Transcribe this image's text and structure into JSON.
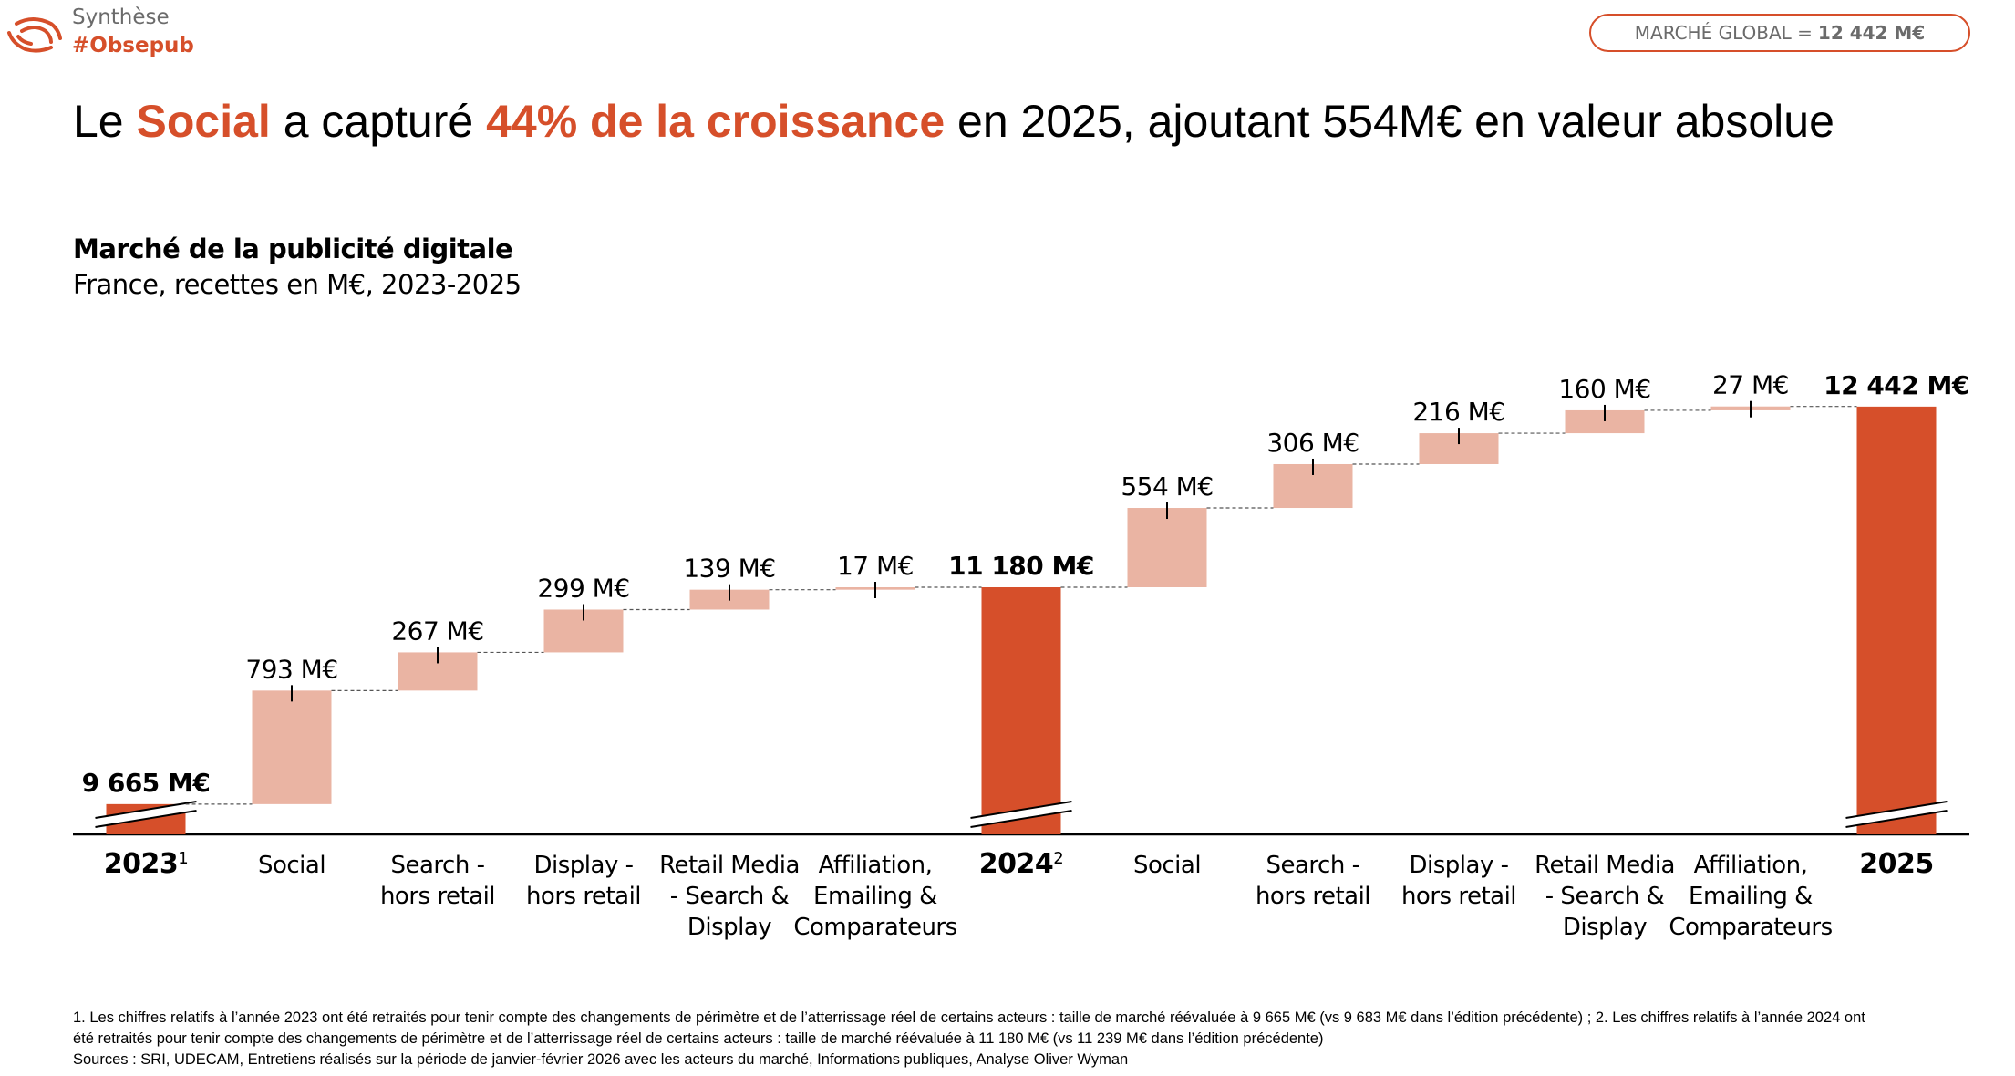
{
  "header": {
    "brand_line1": "Synthèse",
    "brand_line2": "#Obsepub",
    "market_badge_label": "MARCHÉ GLOBAL =",
    "market_badge_value": "12 442 M€"
  },
  "headline": {
    "p1": "Le ",
    "h1": "Social",
    "p2": " a capturé ",
    "h2": "44% de la croissance",
    "p3": " en 2025, ajoutant 554M€ en valeur absolue"
  },
  "colors": {
    "accent": "#D64F2A",
    "increment": "#EAB4A3"
  },
  "chart_data": {
    "type": "waterfall",
    "title": "Marché de la publicité digitale",
    "subtitle": "France, recettes en M€, 2023-2025",
    "unit": "M€",
    "axis_broken": true,
    "bars": [
      {
        "kind": "total",
        "category": [
          "2023"
        ],
        "sup": "1",
        "value": 9665,
        "label": "9 665 M€"
      },
      {
        "kind": "delta",
        "category": [
          "Social"
        ],
        "value": 793,
        "label": "793 M€"
      },
      {
        "kind": "delta",
        "category": [
          "Search -",
          "hors retail"
        ],
        "value": 267,
        "label": "267 M€"
      },
      {
        "kind": "delta",
        "category": [
          "Display -",
          "hors retail"
        ],
        "value": 299,
        "label": "299 M€"
      },
      {
        "kind": "delta",
        "category": [
          "Retail Media",
          "- Search &",
          "Display"
        ],
        "value": 139,
        "label": "139 M€"
      },
      {
        "kind": "delta",
        "category": [
          "Affiliation,",
          "Emailing &",
          "Comparateurs"
        ],
        "value": 17,
        "label": "17 M€"
      },
      {
        "kind": "total",
        "category": [
          "2024"
        ],
        "sup": "2",
        "value": 11180,
        "label": "11 180 M€"
      },
      {
        "kind": "delta",
        "category": [
          "Social"
        ],
        "value": 554,
        "label": "554 M€"
      },
      {
        "kind": "delta",
        "category": [
          "Search -",
          "hors retail"
        ],
        "value": 306,
        "label": "306 M€"
      },
      {
        "kind": "delta",
        "category": [
          "Display -",
          "hors retail"
        ],
        "value": 216,
        "label": "216 M€"
      },
      {
        "kind": "delta",
        "category": [
          "Retail Media",
          "- Search &",
          "Display"
        ],
        "value": 160,
        "label": "160 M€"
      },
      {
        "kind": "delta",
        "category": [
          "Affiliation,",
          "Emailing &",
          "Comparateurs"
        ],
        "value": 27,
        "label": "27 M€"
      },
      {
        "kind": "total",
        "category": [
          "2025"
        ],
        "sup": "",
        "value": 12442,
        "label": "12 442 M€"
      }
    ]
  },
  "footnotes": {
    "line1": "1. Les chiffres relatifs à l’année 2023 ont été retraités pour tenir compte des changements de périmètre et de l’atterrissage réel de certains acteurs : taille de marché réévaluée à 9 665 M€ (vs 9 683 M€ dans l’édition précédente) ; 2. Les chiffres relatifs à l’année 2024 ont",
    "line2": "été retraités pour tenir compte des changements de périmètre et de l’atterrissage réel de certains acteurs : taille de marché réévaluée à 11 180 M€ (vs 11 239 M€ dans l’édition précédente)",
    "sources": "Sources : SRI, UDECAM, Entretiens réalisés sur la période de janvier-février 2026 avec les acteurs du marché, Informations publiques, Analyse Oliver Wyman"
  }
}
